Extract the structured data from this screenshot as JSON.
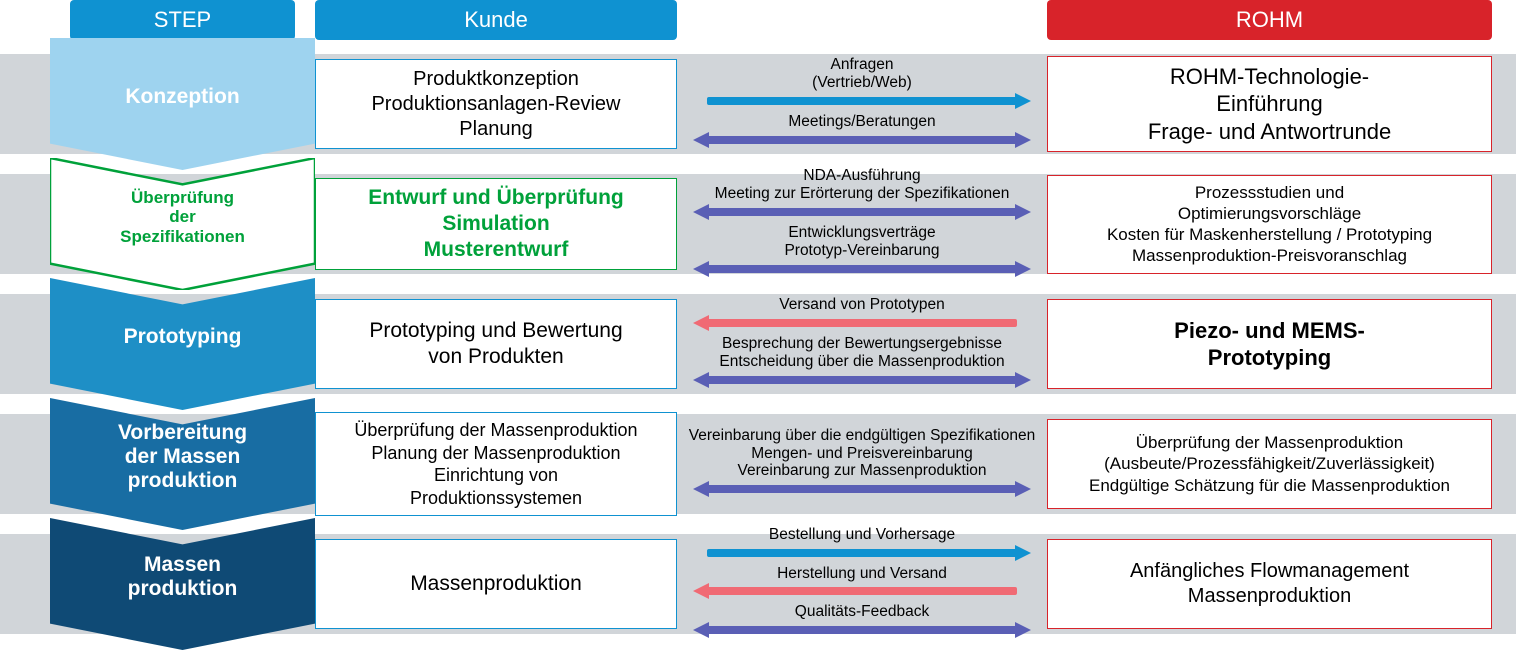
{
  "colors": {
    "blue": "#0f92d1",
    "purple": "#5a5fb5",
    "red": "#d8232a",
    "redArrow": "#f06a74",
    "green": "#00a13a",
    "stripe": "#d1d5d9",
    "stepFills": [
      "#9ed3ef",
      "#ffffff",
      "#1e8fc6",
      "#186da3",
      "#0f4a75"
    ]
  },
  "headers": {
    "step": "STEP",
    "kunde": "Kunde",
    "rohm": "ROHM"
  },
  "rows": [
    {
      "step": {
        "text": "Konzeption",
        "variant": "fill",
        "fillIdx": 0,
        "labelColor": "#ffffff"
      },
      "kunde": {
        "variant": "blue",
        "lines": [
          "Produktkonzeption",
          "Produktionsanlagen-Review",
          "Planung"
        ]
      },
      "rohm": {
        "variant": "red",
        "lines": [
          "ROHM-Technologie-",
          "Einführung",
          "Frage- und Antwortrunde"
        ],
        "big": true
      },
      "mid": [
        {
          "caption": "Anfragen\n(Vertrieb/Web)",
          "dir": "right",
          "color": "blue"
        },
        {
          "caption": "Meetings/Beratungen",
          "dir": "both",
          "color": "purple"
        }
      ]
    },
    {
      "step": {
        "text": "Überprüfung\nder\nSpezifikationen",
        "variant": "outline",
        "stroke": "#00a13a"
      },
      "kunde": {
        "variant": "green",
        "lines": [
          "Entwurf und Überprüfung",
          "Simulation",
          "Musterentwurf"
        ]
      },
      "rohm": {
        "variant": "red",
        "lines": [
          "Prozessstudien und",
          "Optimierungsvorschläge",
          "Kosten für Maskenherstellung / Prototyping",
          "Massenproduktion-Preisvoranschlag"
        ],
        "small": true
      },
      "mid": [
        {
          "caption": "NDA-Ausführung\nMeeting zur Erörterung der Spezifikationen",
          "dir": "both",
          "color": "purple"
        },
        {
          "caption": "Entwicklungsverträge\nPrototyp-Vereinbarung",
          "dir": "both",
          "color": "purple"
        }
      ]
    },
    {
      "step": {
        "text": "Prototyping",
        "variant": "fill",
        "fillIdx": 2
      },
      "kunde": {
        "variant": "blue",
        "lines": [
          "Prototyping und Bewertung",
          "von Produkten"
        ],
        "big": true
      },
      "rohm": {
        "variant": "red",
        "lines": [
          "Piezo- und MEMS-",
          "Prototyping"
        ],
        "big": true,
        "bold": true
      },
      "mid": [
        {
          "caption": "Versand von Prototypen",
          "dir": "left",
          "color": "red"
        },
        {
          "caption": "Besprechung der Bewertungsergebnisse\nEntscheidung über die Massenproduktion",
          "dir": "both",
          "color": "purple"
        }
      ]
    },
    {
      "step": {
        "text": "Vorbereitung\nder Massen\nproduktion",
        "variant": "fill",
        "fillIdx": 3
      },
      "kunde": {
        "variant": "blue",
        "lines": [
          "Überprüfung der Massenproduktion",
          "Planung der Massenproduktion",
          "Einrichtung von",
          "Produktionssystemen"
        ],
        "small": true
      },
      "rohm": {
        "variant": "red",
        "lines": [
          "Überprüfung der Massenproduktion",
          "(Ausbeute/Prozessfähigkeit/Zuverlässigkeit)",
          "Endgültige Schätzung für die Massenproduktion"
        ],
        "small": true
      },
      "mid": [
        {
          "caption": "Vereinbarung über die endgültigen Spezifikationen\nMengen- und Preisvereinbarung\nVereinbarung zur Massenproduktion",
          "dir": "both",
          "color": "purple"
        }
      ]
    },
    {
      "step": {
        "text": "Massen\nproduktion",
        "variant": "fill",
        "fillIdx": 4
      },
      "kunde": {
        "variant": "blue",
        "lines": [
          "Massenproduktion"
        ],
        "big": true
      },
      "rohm": {
        "variant": "red",
        "lines": [
          "Anfängliches Flowmanagement",
          "Massenproduktion"
        ]
      },
      "mid": [
        {
          "caption": "Bestellung und Vorhersage",
          "dir": "right",
          "color": "blue"
        },
        {
          "caption": "Herstellung und Versand",
          "dir": "left",
          "color": "red"
        },
        {
          "caption": "Qualitäts-Feedback",
          "dir": "both",
          "color": "purple"
        }
      ]
    }
  ]
}
